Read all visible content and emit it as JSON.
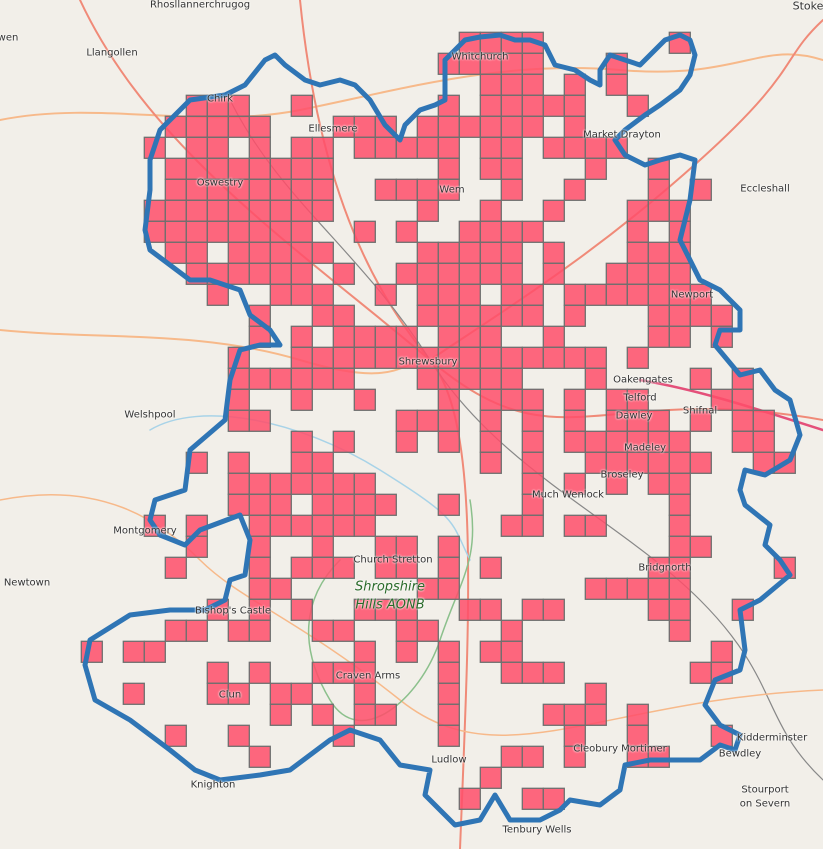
{
  "map": {
    "cell_color": "#ff4d6a",
    "cell_border_color": "#6f6f6f",
    "boundary_color": "#2f75b5",
    "background_color": "#f2efe9",
    "grid_cells": [
      [
        18,
        19,
        20,
        21,
        28
      ],
      [
        17,
        18,
        19,
        20,
        21,
        25
      ],
      [
        19,
        20,
        21,
        23,
        25
      ],
      [
        5,
        6,
        7,
        10,
        17,
        19,
        20,
        21,
        22,
        23,
        26
      ],
      [
        4,
        5,
        6,
        7,
        8,
        12,
        13,
        14,
        16,
        17,
        18,
        19,
        20,
        21,
        23
      ],
      [
        3,
        5,
        6,
        8,
        10,
        11,
        13,
        14,
        15,
        16,
        17,
        19,
        20,
        22,
        23,
        24,
        25
      ],
      [
        4,
        5,
        6,
        7,
        8,
        9,
        10,
        11,
        17,
        19,
        20,
        24,
        27
      ],
      [
        4,
        5,
        6,
        7,
        8,
        9,
        10,
        11,
        14,
        15,
        16,
        17,
        20,
        23,
        27,
        29
      ],
      [
        3,
        4,
        5,
        6,
        7,
        8,
        9,
        10,
        11,
        16,
        19,
        22,
        26,
        27,
        28
      ],
      [
        3,
        4,
        5,
        6,
        7,
        8,
        9,
        10,
        13,
        15,
        18,
        19,
        20,
        21,
        26,
        28
      ],
      [
        4,
        5,
        7,
        8,
        9,
        10,
        11,
        16,
        17,
        18,
        19,
        20,
        22,
        26,
        27,
        28
      ],
      [
        5,
        6,
        7,
        8,
        9,
        10,
        12,
        15,
        16,
        17,
        18,
        19,
        20,
        22,
        25,
        26,
        27,
        28
      ],
      [
        6,
        9,
        10,
        11,
        14,
        16,
        17,
        18,
        20,
        21,
        23,
        24,
        25,
        26,
        27,
        28,
        29
      ],
      [
        8,
        11,
        12,
        16,
        17,
        18,
        19,
        20,
        21,
        23,
        27,
        28,
        29,
        30
      ],
      [
        8,
        10,
        12,
        13,
        14,
        15,
        17,
        18,
        19,
        22,
        27,
        28,
        30
      ],
      [
        7,
        10,
        11,
        12,
        13,
        14,
        15,
        16,
        17,
        18,
        19,
        20,
        21,
        22,
        23,
        24,
        26
      ],
      [
        7,
        8,
        9,
        10,
        11,
        12,
        16,
        17,
        18,
        19,
        20,
        24,
        29,
        31
      ],
      [
        7,
        10,
        13,
        17,
        19,
        20,
        21,
        23,
        25,
        26,
        30,
        31
      ],
      [
        7,
        8,
        15,
        16,
        17,
        19,
        21,
        23,
        25,
        26,
        27,
        29,
        31,
        32
      ],
      [
        10,
        12,
        15,
        17,
        19,
        21,
        23,
        24,
        25,
        26,
        27,
        28,
        31,
        32
      ],
      [
        5,
        7,
        10,
        11,
        19,
        21,
        24,
        25,
        26,
        27,
        28,
        29,
        32,
        33
      ],
      [
        7,
        8,
        9,
        10,
        11,
        12,
        13,
        21,
        23,
        25,
        27,
        28
      ],
      [
        7,
        8,
        9,
        11,
        12,
        13,
        14,
        17,
        21,
        28
      ],
      [
        3,
        5,
        8,
        9,
        10,
        11,
        12,
        13,
        20,
        21,
        23,
        24,
        28
      ],
      [
        5,
        8,
        11,
        14,
        15,
        17,
        28,
        29
      ],
      [
        4,
        8,
        10,
        11,
        12,
        14,
        15,
        17,
        19,
        27,
        28,
        33
      ],
      [
        8,
        9,
        16,
        17,
        24,
        25,
        26,
        27,
        28
      ],
      [
        6,
        8,
        10,
        13,
        14,
        15,
        18,
        19,
        21,
        22,
        27,
        28,
        31
      ],
      [
        4,
        5,
        7,
        8,
        11,
        12,
        15,
        16,
        20,
        28
      ],
      [
        0,
        2,
        3,
        13,
        15,
        17,
        19,
        20,
        30
      ],
      [
        6,
        8,
        11,
        12,
        13,
        17,
        20,
        21,
        22,
        29,
        30
      ],
      [
        2,
        6,
        7,
        9,
        10,
        13,
        17,
        24
      ],
      [
        9,
        11,
        13,
        14,
        17,
        22,
        23,
        24,
        26
      ],
      [
        4,
        7,
        12,
        17,
        23,
        26,
        30
      ],
      [
        8,
        20,
        21,
        23,
        26,
        27
      ],
      [
        19
      ],
      [
        18,
        21,
        22
      ]
    ],
    "places": {
      "rhos": "Rhosllannerchrugog",
      "wen": "wen",
      "llangollen": "Llangollen",
      "stoke": "Stoke",
      "whitchurch": "Whitchurch",
      "market_drayton": "Market Drayton",
      "ellesmere": "Ellesmere",
      "chirk": "Chirk",
      "oswestry": "Oswestry",
      "wem": "Wem",
      "eccleshall": "Eccleshall",
      "newport": "Newport",
      "shrewsbury": "Shrewsbury",
      "oakengates": "Oakengates",
      "telford": "Telford",
      "dawley": "Dawley",
      "shifnal": "Shifnal",
      "madeley": "Madeley",
      "welshpool": "Welshpool",
      "broseley": "Broseley",
      "much_wenlock": "Much Wenlock",
      "montgomery": "Montgomery",
      "church_stretton": "Church Stretton",
      "aonb_line1": "Shropshire",
      "aonb_line2": "Hills AONB",
      "bridgnorth": "Bridgnorth",
      "newtown": "Newtown",
      "bishops_castle": "Bishop's Castle",
      "clun": "Clun",
      "craven_arms": "Craven Arms",
      "ludlow": "Ludlow",
      "cleobury": "Cleobury Mortimer",
      "kidderminster": "Kidderminster",
      "bewdley": "Bewdley",
      "knighton": "Knighton",
      "stourport1": "Stourport",
      "stourport2": "on Severn",
      "tenbury": "Tenbury Wells"
    }
  }
}
